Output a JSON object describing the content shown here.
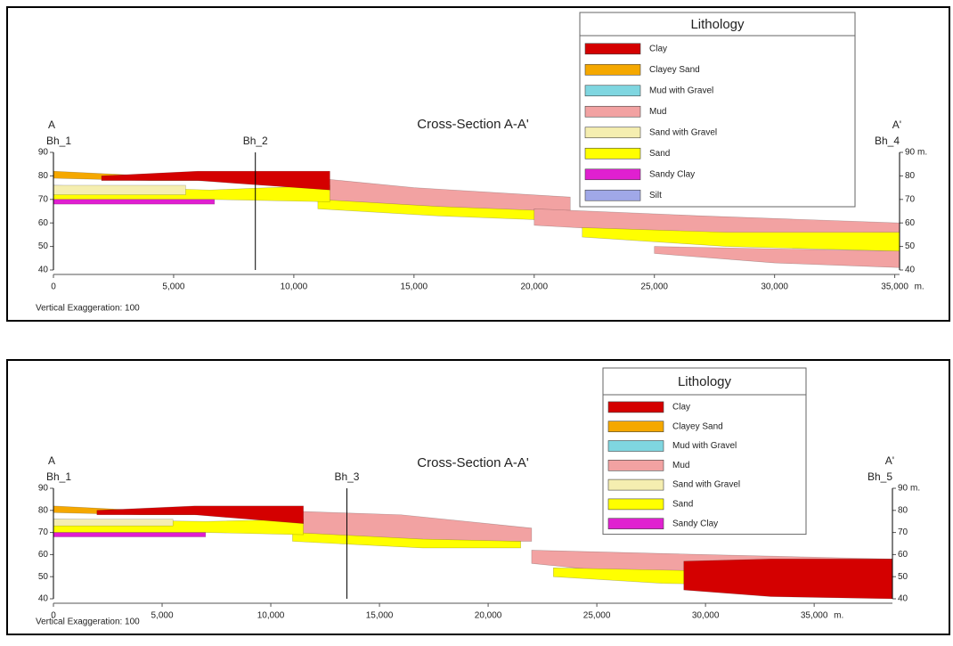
{
  "chart_data": [
    {
      "type": "cross-section",
      "title": "Cross-Section A-A'",
      "start_label": "A",
      "end_label": "A'",
      "note": "Vertical Exaggeration: 100",
      "unit": "m.",
      "xlim": [
        0,
        35200
      ],
      "ylim": [
        40,
        90
      ],
      "xticks": [
        0,
        {
          "value": 5000,
          "label": "5,000"
        },
        {
          "value": 10000,
          "label": "10,000"
        },
        {
          "value": 15000,
          "label": "15,000"
        },
        {
          "value": 20000,
          "label": "20,000"
        },
        {
          "value": 25000,
          "label": "25,000"
        },
        {
          "value": 30000,
          "label": "30,000"
        },
        {
          "value": 35000,
          "label": "35,000"
        }
      ],
      "yticks": [
        40,
        50,
        60,
        70,
        80,
        90
      ],
      "boreholes": [
        {
          "name": "Bh_1",
          "x": 0
        },
        {
          "name": "Bh_2",
          "x": 8400
        },
        {
          "name": "Bh_4",
          "x": 35200
        }
      ],
      "legend": {
        "title": "Lithology",
        "items": [
          {
            "name": "Clay",
            "color": "#d40000"
          },
          {
            "name": "Clayey Sand",
            "color": "#f5a800"
          },
          {
            "name": "Mud with Gravel",
            "color": "#7fd6e0"
          },
          {
            "name": "Mud",
            "color": "#f2a2a2"
          },
          {
            "name": "Sand with Gravel",
            "color": "#f5eeb0"
          },
          {
            "name": "Sand",
            "color": "#ffff00"
          },
          {
            "name": "Sandy Clay",
            "color": "#e020d0"
          },
          {
            "name": "Silt",
            "color": "#a0a8e8"
          }
        ]
      },
      "layers": [
        {
          "lithology": "Mud",
          "x": [
            10000,
            15000,
            21500
          ],
          "top": [
            80,
            75,
            71
          ],
          "bottom": [
            70,
            66,
            65
          ]
        },
        {
          "lithology": "Sand",
          "x": [
            11000,
            16000,
            21000
          ],
          "top": [
            70,
            67,
            65
          ],
          "bottom": [
            66,
            63,
            61
          ]
        },
        {
          "lithology": "Mud",
          "x": [
            20000,
            27000,
            35200
          ],
          "top": [
            66,
            63,
            60
          ],
          "bottom": [
            59,
            55,
            56
          ]
        },
        {
          "lithology": "Sand",
          "x": [
            22000,
            28000,
            35200
          ],
          "top": [
            58,
            56,
            56
          ],
          "bottom": [
            54,
            50,
            48
          ]
        },
        {
          "lithology": "Mud",
          "x": [
            25000,
            30000,
            35200
          ],
          "top": [
            50,
            49,
            48
          ],
          "bottom": [
            47,
            43,
            41
          ]
        },
        {
          "lithology": "Sand",
          "x": [
            0,
            6500,
            11500
          ],
          "top": [
            76,
            74,
            76
          ],
          "bottom": [
            70,
            70,
            69
          ]
        },
        {
          "lithology": "Sand with Gravel",
          "x": [
            0,
            5500
          ],
          "top": [
            76,
            76
          ],
          "bottom": [
            72,
            72
          ]
        },
        {
          "lithology": "Clayey Sand",
          "x": [
            0,
            4000,
            8000
          ],
          "top": [
            82,
            80,
            80
          ],
          "bottom": [
            79,
            78,
            78
          ]
        },
        {
          "lithology": "Clay",
          "x": [
            2000,
            6000,
            11500
          ],
          "top": [
            80,
            82,
            82
          ],
          "bottom": [
            78,
            78,
            74
          ]
        },
        {
          "lithology": "Sandy Clay",
          "x": [
            0,
            6700
          ],
          "top": [
            70,
            70
          ],
          "bottom": [
            68,
            68
          ]
        }
      ]
    },
    {
      "type": "cross-section",
      "title": "Cross-Section A-A'",
      "start_label": "A",
      "end_label": "A'",
      "note": "Vertical Exaggeration: 100",
      "unit": "m.",
      "xlim": [
        0,
        38600
      ],
      "ylim": [
        40,
        90
      ],
      "xticks": [
        0,
        {
          "value": 5000,
          "label": "5,000"
        },
        {
          "value": 10000,
          "label": "10,000"
        },
        {
          "value": 15000,
          "label": "15,000"
        },
        {
          "value": 20000,
          "label": "20,000"
        },
        {
          "value": 25000,
          "label": "25,000"
        },
        {
          "value": 30000,
          "label": "30,000"
        },
        {
          "value": 35000,
          "label": "35,000"
        }
      ],
      "yticks": [
        40,
        50,
        60,
        70,
        80,
        90
      ],
      "boreholes": [
        {
          "name": "Bh_1",
          "x": 0
        },
        {
          "name": "Bh_3",
          "x": 13500
        },
        {
          "name": "Bh_5",
          "x": 38600
        }
      ],
      "legend": {
        "title": "Lithology",
        "items": [
          {
            "name": "Clay",
            "color": "#d40000"
          },
          {
            "name": "Clayey Sand",
            "color": "#f5a800"
          },
          {
            "name": "Mud with Gravel",
            "color": "#7fd6e0"
          },
          {
            "name": "Mud",
            "color": "#f2a2a2"
          },
          {
            "name": "Sand with Gravel",
            "color": "#f5eeb0"
          },
          {
            "name": "Sand",
            "color": "#ffff00"
          },
          {
            "name": "Sandy Clay",
            "color": "#e020d0"
          }
        ]
      },
      "layers": [
        {
          "lithology": "Mud",
          "x": [
            10000,
            16000,
            22000
          ],
          "top": [
            80,
            78,
            72
          ],
          "bottom": [
            70,
            66,
            66
          ]
        },
        {
          "lithology": "Sand",
          "x": [
            11000,
            17000,
            21500
          ],
          "top": [
            70,
            67,
            66
          ],
          "bottom": [
            66,
            63,
            63
          ]
        },
        {
          "lithology": "Mud",
          "x": [
            22000,
            30000,
            38600
          ],
          "top": [
            62,
            60,
            58
          ],
          "bottom": [
            56,
            48,
            44
          ]
        },
        {
          "lithology": "Sand",
          "x": [
            23000,
            28000,
            33000
          ],
          "top": [
            54,
            53,
            52
          ],
          "bottom": [
            50,
            47,
            46
          ]
        },
        {
          "lithology": "Clay",
          "x": [
            29000,
            33000,
            38600
          ],
          "top": [
            57,
            58,
            58
          ],
          "bottom": [
            44,
            41,
            40
          ]
        },
        {
          "lithology": "Sand",
          "x": [
            0,
            7000,
            11500
          ],
          "top": [
            76,
            75,
            76
          ],
          "bottom": [
            70,
            70,
            69
          ]
        },
        {
          "lithology": "Sand with Gravel",
          "x": [
            0,
            5500
          ],
          "top": [
            76,
            76
          ],
          "bottom": [
            73,
            73
          ]
        },
        {
          "lithology": "Clayey Sand",
          "x": [
            0,
            4000,
            7500
          ],
          "top": [
            82,
            80,
            80
          ],
          "bottom": [
            79,
            78,
            78
          ]
        },
        {
          "lithology": "Clay",
          "x": [
            2000,
            6500,
            11500
          ],
          "top": [
            80,
            82,
            82
          ],
          "bottom": [
            78,
            78,
            74
          ]
        },
        {
          "lithology": "Sandy Clay",
          "x": [
            0,
            7000
          ],
          "top": [
            70,
            70
          ],
          "bottom": [
            68,
            68
          ]
        }
      ]
    }
  ]
}
